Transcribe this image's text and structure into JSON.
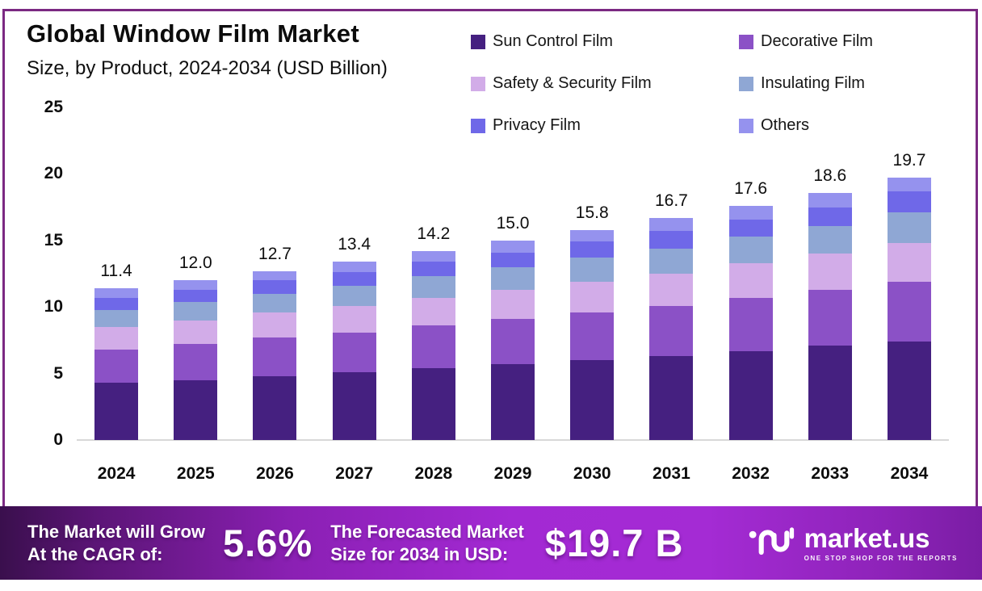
{
  "header": {
    "title": "Global Window Film Market",
    "subtitle": "Size, by Product, 2024-2034 (USD Billion)"
  },
  "legend": {
    "items": [
      {
        "label": "Sun Control Film",
        "color": "#452080"
      },
      {
        "label": "Decorative Film",
        "color": "#8b51c6"
      },
      {
        "label": "Safety & Security Film",
        "color": "#d2ace8"
      },
      {
        "label": "Insulating Film",
        "color": "#8fa7d4"
      },
      {
        "label": "Privacy Film",
        "color": "#6f68e8"
      },
      {
        "label": "Others",
        "color": "#9592ee"
      }
    ]
  },
  "chart_data": {
    "type": "bar",
    "stacked": true,
    "title": "Global Window Film Market Size, by Product, 2024-2034 (USD Billion)",
    "xlabel": "",
    "ylabel": "USD Billion",
    "ylim": [
      0,
      25
    ],
    "yticks": [
      25,
      20,
      15,
      10,
      5,
      0
    ],
    "grid": false,
    "legend_position": "top-right",
    "categories": [
      "2024",
      "2025",
      "2026",
      "2027",
      "2028",
      "2029",
      "2030",
      "2031",
      "2032",
      "2033",
      "2034"
    ],
    "totals": [
      11.4,
      12.0,
      12.7,
      13.4,
      14.2,
      15.0,
      15.8,
      16.7,
      17.6,
      18.6,
      19.7
    ],
    "total_labels": [
      "11.4",
      "12.0",
      "12.7",
      "13.4",
      "14.2",
      "15.0",
      "15.8",
      "16.7",
      "17.6",
      "18.6",
      "19.7"
    ],
    "series": [
      {
        "name": "Sun Control Film",
        "color": "#452080",
        "values": [
          4.3,
          4.5,
          4.8,
          5.1,
          5.4,
          5.7,
          6.0,
          6.3,
          6.7,
          7.1,
          7.4
        ]
      },
      {
        "name": "Decorative Film",
        "color": "#8b51c6",
        "values": [
          2.5,
          2.7,
          2.9,
          3.0,
          3.2,
          3.4,
          3.6,
          3.8,
          4.0,
          4.2,
          4.5
        ]
      },
      {
        "name": "Safety & Security Film",
        "color": "#d2ace8",
        "values": [
          1.7,
          1.8,
          1.9,
          2.0,
          2.1,
          2.2,
          2.3,
          2.4,
          2.6,
          2.7,
          2.9
        ]
      },
      {
        "name": "Insulating Film",
        "color": "#8fa7d4",
        "values": [
          1.3,
          1.4,
          1.4,
          1.5,
          1.6,
          1.7,
          1.8,
          1.9,
          2.0,
          2.1,
          2.3
        ]
      },
      {
        "name": "Privacy Film",
        "color": "#6f68e8",
        "values": [
          0.9,
          0.9,
          1.0,
          1.0,
          1.1,
          1.1,
          1.2,
          1.3,
          1.3,
          1.4,
          1.6
        ]
      },
      {
        "name": "Others",
        "color": "#9592ee",
        "values": [
          0.7,
          0.7,
          0.7,
          0.8,
          0.8,
          0.9,
          0.9,
          1.0,
          1.0,
          1.1,
          1.0
        ]
      }
    ]
  },
  "banner": {
    "cagr_label_line1": "The Market will Grow",
    "cagr_label_line2": "At the CAGR of:",
    "cagr_value": "5.6%",
    "forecast_label_line1": "The Forecasted Market",
    "forecast_label_line2": "Size for 2034 in USD:",
    "forecast_value": "$19.7 B",
    "logo_text": "market.us",
    "logo_tagline": "ONE STOP SHOP FOR THE REPORTS"
  },
  "colors": {
    "card_border": "#7b2982",
    "axis_line": "#d8d8d8",
    "banner_gradient_start": "#3a0f4d",
    "banner_gradient_mid": "#a42bd4",
    "banner_gradient_end": "#7a1da4"
  }
}
